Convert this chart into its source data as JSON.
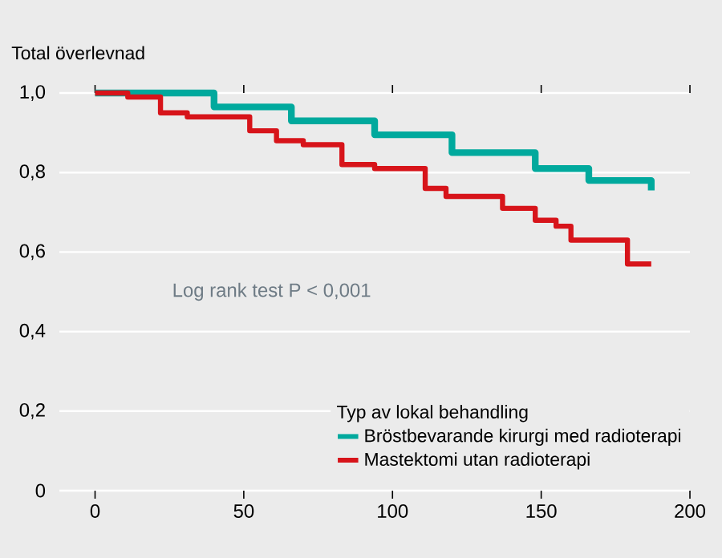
{
  "chart_data": {
    "type": "step",
    "ylabel": "Total överlevnad",
    "legend_title": "Typ av lokal behandling",
    "annotations": [
      "Log rank test P < 0,001"
    ],
    "xlim": [
      -12,
      200
    ],
    "xticks": [
      0,
      50,
      100,
      150,
      200
    ],
    "ylim": [
      0,
      1.0
    ],
    "yticks": [
      {
        "value": 0,
        "label": "0"
      },
      {
        "value": 0.2,
        "label": "0,2"
      },
      {
        "value": 0.4,
        "label": "0,4"
      },
      {
        "value": 0.6,
        "label": "0,6"
      },
      {
        "value": 0.8,
        "label": "0,8"
      },
      {
        "value": 1.0,
        "label": "1,0"
      }
    ],
    "grid": "y",
    "legend": "bottom right",
    "series": [
      {
        "name": "Bröstbevarande kirurgi med radioterapi",
        "color": "#00a99d",
        "x": [
          0,
          12,
          40,
          66,
          94,
          120,
          148,
          166,
          187
        ],
        "values": [
          1.0,
          1.0,
          0.965,
          0.93,
          0.895,
          0.85,
          0.81,
          0.78,
          0.755
        ]
      },
      {
        "name": "Mastektomi utan radioterapi",
        "color": "#d7141a",
        "x": [
          0,
          11,
          22,
          31,
          52,
          61,
          70,
          83,
          94,
          111,
          118,
          130,
          137,
          148,
          155,
          160,
          179,
          187
        ],
        "values": [
          1.0,
          0.99,
          0.95,
          0.94,
          0.905,
          0.88,
          0.87,
          0.82,
          0.81,
          0.76,
          0.74,
          0.74,
          0.71,
          0.68,
          0.665,
          0.63,
          0.57,
          0.57
        ]
      }
    ]
  }
}
